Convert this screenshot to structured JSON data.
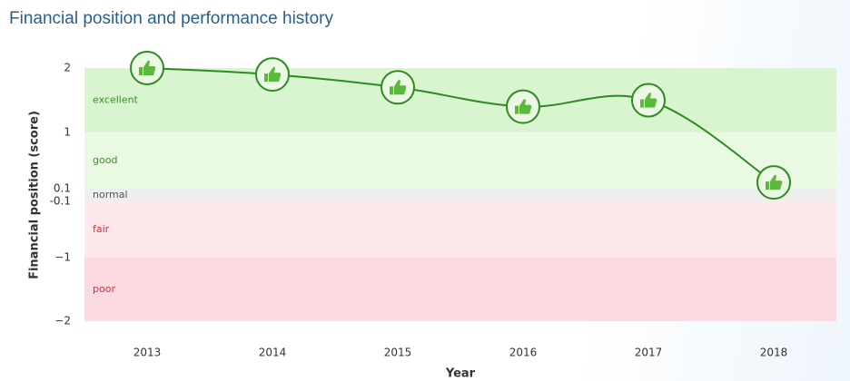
{
  "chart_data": {
    "type": "line",
    "title": "Financial position and performance history",
    "x_label": "Year",
    "y_label": "Financial position (score)",
    "categories": [
      "2013",
      "2014",
      "2015",
      "2016",
      "2017",
      "2018"
    ],
    "series": [
      {
        "name": "Financial position",
        "color": "#2e8b22",
        "values": [
          2.0,
          1.9,
          1.7,
          1.4,
          1.5,
          0.2
        ]
      }
    ],
    "ylim": [
      -2,
      2
    ],
    "yticks": [
      2,
      1,
      0.1,
      -0.1,
      {
        "value": -1,
        "label": "−1"
      },
      {
        "value": -2,
        "label": "−2"
      }
    ],
    "bands": [
      {
        "label": "excellent",
        "from": 1,
        "to": 2,
        "color": "#d8f5cf",
        "label_color": "#3d8f2a"
      },
      {
        "label": "good",
        "from": 0.1,
        "to": 1,
        "color": "#e9f9e2",
        "label_color": "#3d8f2a"
      },
      {
        "label": "normal",
        "from": -0.1,
        "to": 0.1,
        "color": "#efefef",
        "label_color": "#555555"
      },
      {
        "label": "fair",
        "from": -1,
        "to": -0.1,
        "color": "#fde9ec",
        "label_color": "#c8353f"
      },
      {
        "label": "poor",
        "from": -2,
        "to": -1,
        "color": "#fcdbe0",
        "label_color": "#c8353f"
      }
    ]
  }
}
